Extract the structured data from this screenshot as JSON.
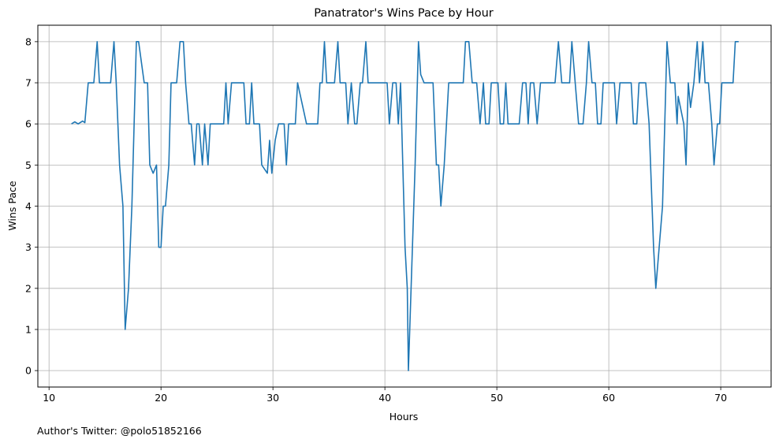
{
  "footer": "Author's Twitter: @polo51852166",
  "chart_data": {
    "type": "line",
    "title": "Panatrator's Wins Pace by Hour",
    "xlabel": "Hours",
    "ylabel": "Wins Pace",
    "xlim": [
      9.0,
      74.5
    ],
    "ylim": [
      -0.4,
      8.4
    ],
    "xticks": [
      10,
      20,
      30,
      40,
      50,
      60,
      70
    ],
    "yticks": [
      0,
      1,
      2,
      3,
      4,
      5,
      6,
      7,
      8
    ],
    "grid": true,
    "series_color": "#1f77b4",
    "series": [
      {
        "points": [
          [
            12.0,
            6.0
          ],
          [
            12.3,
            6.05
          ],
          [
            12.6,
            6.0
          ],
          [
            13.0,
            6.07
          ],
          [
            13.2,
            6.03
          ],
          [
            13.5,
            7.0
          ],
          [
            14.0,
            7.0
          ],
          [
            14.3,
            8.0
          ],
          [
            14.5,
            7.0
          ],
          [
            15.0,
            7.0
          ],
          [
            15.5,
            7.0
          ],
          [
            15.8,
            8.0
          ],
          [
            16.0,
            7.0
          ],
          [
            16.3,
            5.0
          ],
          [
            16.6,
            4.0
          ],
          [
            16.8,
            1.0
          ],
          [
            17.1,
            2.0
          ],
          [
            17.4,
            4.0
          ],
          [
            17.6,
            6.0
          ],
          [
            17.8,
            8.0
          ],
          [
            18.0,
            8.0
          ],
          [
            18.5,
            7.0
          ],
          [
            18.8,
            7.0
          ],
          [
            19.0,
            5.0
          ],
          [
            19.3,
            4.8
          ],
          [
            19.6,
            5.0
          ],
          [
            19.8,
            3.0
          ],
          [
            20.0,
            3.0
          ],
          [
            20.2,
            4.0
          ],
          [
            20.4,
            4.0
          ],
          [
            20.7,
            5.0
          ],
          [
            20.9,
            7.0
          ],
          [
            21.4,
            7.0
          ],
          [
            21.7,
            8.0
          ],
          [
            22.0,
            8.0
          ],
          [
            22.2,
            7.0
          ],
          [
            22.5,
            6.0
          ],
          [
            22.7,
            6.0
          ],
          [
            23.0,
            5.0
          ],
          [
            23.2,
            6.0
          ],
          [
            23.4,
            6.0
          ],
          [
            23.7,
            5.0
          ],
          [
            23.9,
            6.0
          ],
          [
            24.2,
            5.0
          ],
          [
            24.4,
            6.0
          ],
          [
            25.0,
            6.0
          ],
          [
            25.6,
            6.0
          ],
          [
            25.8,
            7.0
          ],
          [
            26.0,
            6.0
          ],
          [
            26.3,
            7.0
          ],
          [
            27.0,
            7.0
          ],
          [
            27.4,
            7.0
          ],
          [
            27.6,
            6.0
          ],
          [
            27.9,
            6.0
          ],
          [
            28.1,
            7.0
          ],
          [
            28.3,
            6.0
          ],
          [
            28.8,
            6.0
          ],
          [
            29.0,
            5.0
          ],
          [
            29.5,
            4.8
          ],
          [
            29.7,
            5.6
          ],
          [
            29.9,
            4.8
          ],
          [
            30.2,
            5.6
          ],
          [
            30.5,
            6.0
          ],
          [
            31.0,
            6.0
          ],
          [
            31.2,
            5.0
          ],
          [
            31.4,
            6.0
          ],
          [
            32.0,
            6.0
          ],
          [
            32.2,
            7.0
          ],
          [
            33.0,
            6.0
          ],
          [
            34.0,
            6.0
          ],
          [
            34.2,
            7.0
          ],
          [
            34.4,
            7.0
          ],
          [
            34.6,
            8.0
          ],
          [
            34.8,
            7.0
          ],
          [
            35.5,
            7.0
          ],
          [
            35.8,
            8.0
          ],
          [
            36.0,
            7.0
          ],
          [
            36.5,
            7.0
          ],
          [
            36.7,
            6.0
          ],
          [
            37.0,
            7.0
          ],
          [
            37.3,
            6.0
          ],
          [
            37.5,
            6.0
          ],
          [
            37.8,
            7.0
          ],
          [
            38.0,
            7.0
          ],
          [
            38.3,
            8.0
          ],
          [
            38.5,
            7.0
          ],
          [
            39.5,
            7.0
          ],
          [
            40.2,
            7.0
          ],
          [
            40.4,
            6.0
          ],
          [
            40.7,
            7.0
          ],
          [
            41.0,
            7.0
          ],
          [
            41.2,
            6.0
          ],
          [
            41.4,
            7.0
          ],
          [
            41.6,
            5.0
          ],
          [
            41.8,
            3.0
          ],
          [
            42.0,
            2.0
          ],
          [
            42.1,
            0.0
          ],
          [
            42.4,
            2.5
          ],
          [
            42.7,
            5.0
          ],
          [
            42.8,
            6.0
          ],
          [
            43.0,
            8.0
          ],
          [
            43.2,
            7.2
          ],
          [
            43.5,
            7.0
          ],
          [
            44.3,
            7.0
          ],
          [
            44.6,
            5.0
          ],
          [
            44.8,
            5.0
          ],
          [
            45.0,
            4.0
          ],
          [
            45.3,
            5.0
          ],
          [
            45.7,
            7.0
          ],
          [
            46.5,
            7.0
          ],
          [
            47.0,
            7.0
          ],
          [
            47.2,
            8.0
          ],
          [
            47.5,
            8.0
          ],
          [
            47.8,
            7.0
          ],
          [
            48.2,
            7.0
          ],
          [
            48.5,
            6.0
          ],
          [
            48.8,
            7.0
          ],
          [
            49.0,
            6.0
          ],
          [
            49.3,
            6.0
          ],
          [
            49.5,
            7.0
          ],
          [
            50.1,
            7.0
          ],
          [
            50.3,
            6.0
          ],
          [
            50.6,
            6.0
          ],
          [
            50.8,
            7.0
          ],
          [
            51.0,
            6.0
          ],
          [
            51.5,
            6.0
          ],
          [
            52.0,
            6.0
          ],
          [
            52.3,
            7.0
          ],
          [
            52.6,
            7.0
          ],
          [
            52.8,
            6.0
          ],
          [
            53.0,
            7.0
          ],
          [
            53.3,
            7.0
          ],
          [
            53.6,
            6.0
          ],
          [
            53.9,
            7.0
          ],
          [
            54.5,
            7.0
          ],
          [
            55.2,
            7.0
          ],
          [
            55.5,
            8.0
          ],
          [
            55.8,
            7.0
          ],
          [
            56.5,
            7.0
          ],
          [
            56.7,
            8.0
          ],
          [
            57.0,
            7.0
          ],
          [
            57.3,
            6.0
          ],
          [
            57.7,
            6.0
          ],
          [
            58.0,
            7.0
          ],
          [
            58.2,
            8.0
          ],
          [
            58.5,
            7.0
          ],
          [
            58.8,
            7.0
          ],
          [
            59.0,
            6.0
          ],
          [
            59.3,
            6.0
          ],
          [
            59.5,
            7.0
          ],
          [
            60.5,
            7.0
          ],
          [
            60.7,
            6.0
          ],
          [
            61.0,
            7.0
          ],
          [
            61.5,
            7.0
          ],
          [
            62.0,
            7.0
          ],
          [
            62.2,
            6.0
          ],
          [
            62.5,
            6.0
          ],
          [
            62.7,
            7.0
          ],
          [
            63.3,
            7.0
          ],
          [
            63.6,
            6.0
          ],
          [
            64.0,
            3.0
          ],
          [
            64.2,
            2.0
          ],
          [
            64.5,
            3.0
          ],
          [
            64.8,
            4.0
          ],
          [
            65.0,
            6.0
          ],
          [
            65.2,
            8.0
          ],
          [
            65.5,
            7.0
          ],
          [
            65.9,
            7.0
          ],
          [
            66.1,
            6.0
          ],
          [
            66.2,
            6.67
          ],
          [
            66.7,
            6.0
          ],
          [
            66.9,
            5.0
          ],
          [
            67.1,
            7.0
          ],
          [
            67.3,
            6.4
          ],
          [
            67.6,
            7.0
          ],
          [
            67.9,
            8.0
          ],
          [
            68.1,
            7.0
          ],
          [
            68.4,
            8.0
          ],
          [
            68.6,
            7.0
          ],
          [
            68.9,
            7.0
          ],
          [
            69.2,
            6.0
          ],
          [
            69.4,
            5.0
          ],
          [
            69.7,
            6.0
          ],
          [
            69.9,
            6.0
          ],
          [
            70.1,
            7.0
          ],
          [
            70.5,
            7.0
          ],
          [
            71.0,
            7.0
          ],
          [
            71.1,
            7.0
          ],
          [
            71.3,
            8.0
          ],
          [
            71.6,
            8.0
          ]
        ]
      }
    ]
  }
}
